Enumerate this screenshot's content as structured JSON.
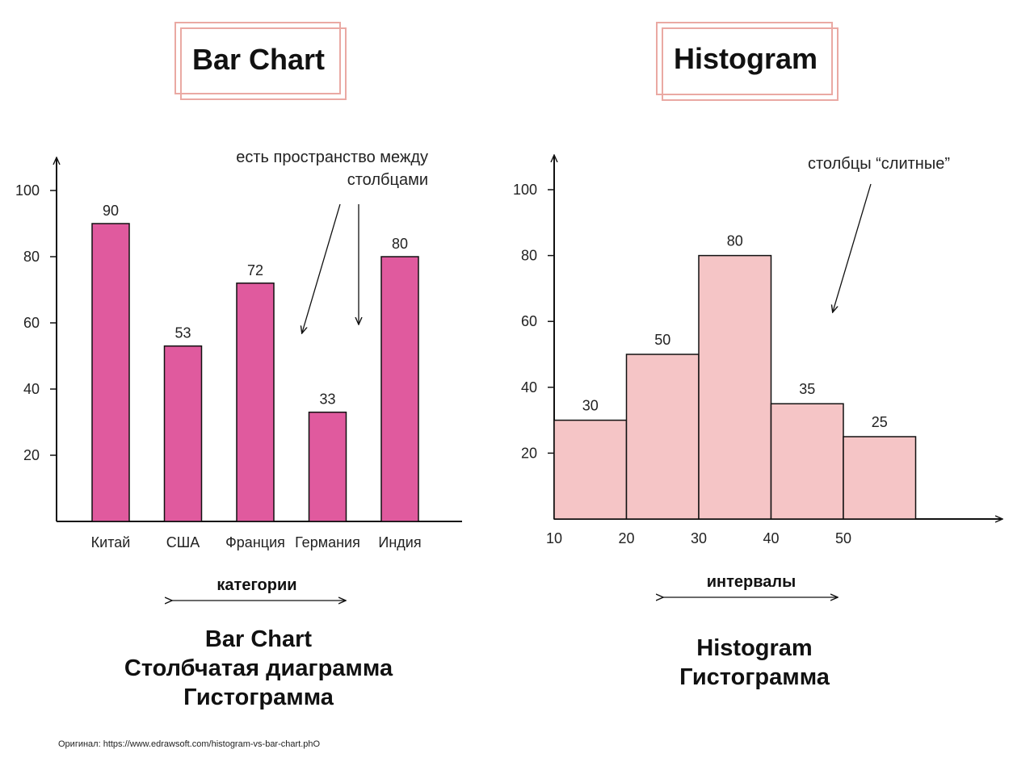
{
  "panels": {
    "bar": {
      "heading": "Bar Chart"
    },
    "hist": {
      "heading": "Histogram"
    }
  },
  "annotations": {
    "bar_note_line1": "есть пространство между",
    "bar_note_line2": "столбцами",
    "hist_note": "столбцы “слитные”",
    "bar_axis_word": "категории",
    "hist_axis_word": "интервалы"
  },
  "captions": {
    "bar": [
      "Bar Chart",
      "Столбчатая диаграмма",
      "Гистограмма"
    ],
    "hist": [
      "Histogram",
      "Гистограмма"
    ]
  },
  "source": "Оригинал: https://www.edrawsoft.com/histogram-vs-bar-chart.phO",
  "colors": {
    "bar_fill": "#e05a9e",
    "hist_fill": "#f5c5c6",
    "frame": "#eaa9a3",
    "ink": "#111111"
  },
  "chart_data": [
    {
      "type": "bar",
      "title": "Bar Chart",
      "categories": [
        "Китай",
        "США",
        "Франция",
        "Германия",
        "Индия"
      ],
      "values": [
        90,
        53,
        72,
        33,
        80
      ],
      "data_labels": [
        "90",
        "53",
        "72",
        "33",
        "80"
      ],
      "yticks": [
        20,
        40,
        60,
        80,
        100
      ],
      "ylim": [
        0,
        110
      ],
      "grid": false
    },
    {
      "type": "bar",
      "title": "Histogram",
      "bins": [
        [
          10,
          20
        ],
        [
          20,
          30
        ],
        [
          30,
          40
        ],
        [
          40,
          50
        ],
        [
          50,
          60
        ]
      ],
      "values": [
        30,
        50,
        80,
        35,
        25
      ],
      "data_labels": [
        "30",
        "50",
        "80",
        "35",
        "25"
      ],
      "xticks": [
        10,
        20,
        30,
        40,
        50
      ],
      "yticks": [
        20,
        40,
        60,
        80,
        100
      ],
      "ylim": [
        0,
        110
      ],
      "grid": false
    }
  ]
}
